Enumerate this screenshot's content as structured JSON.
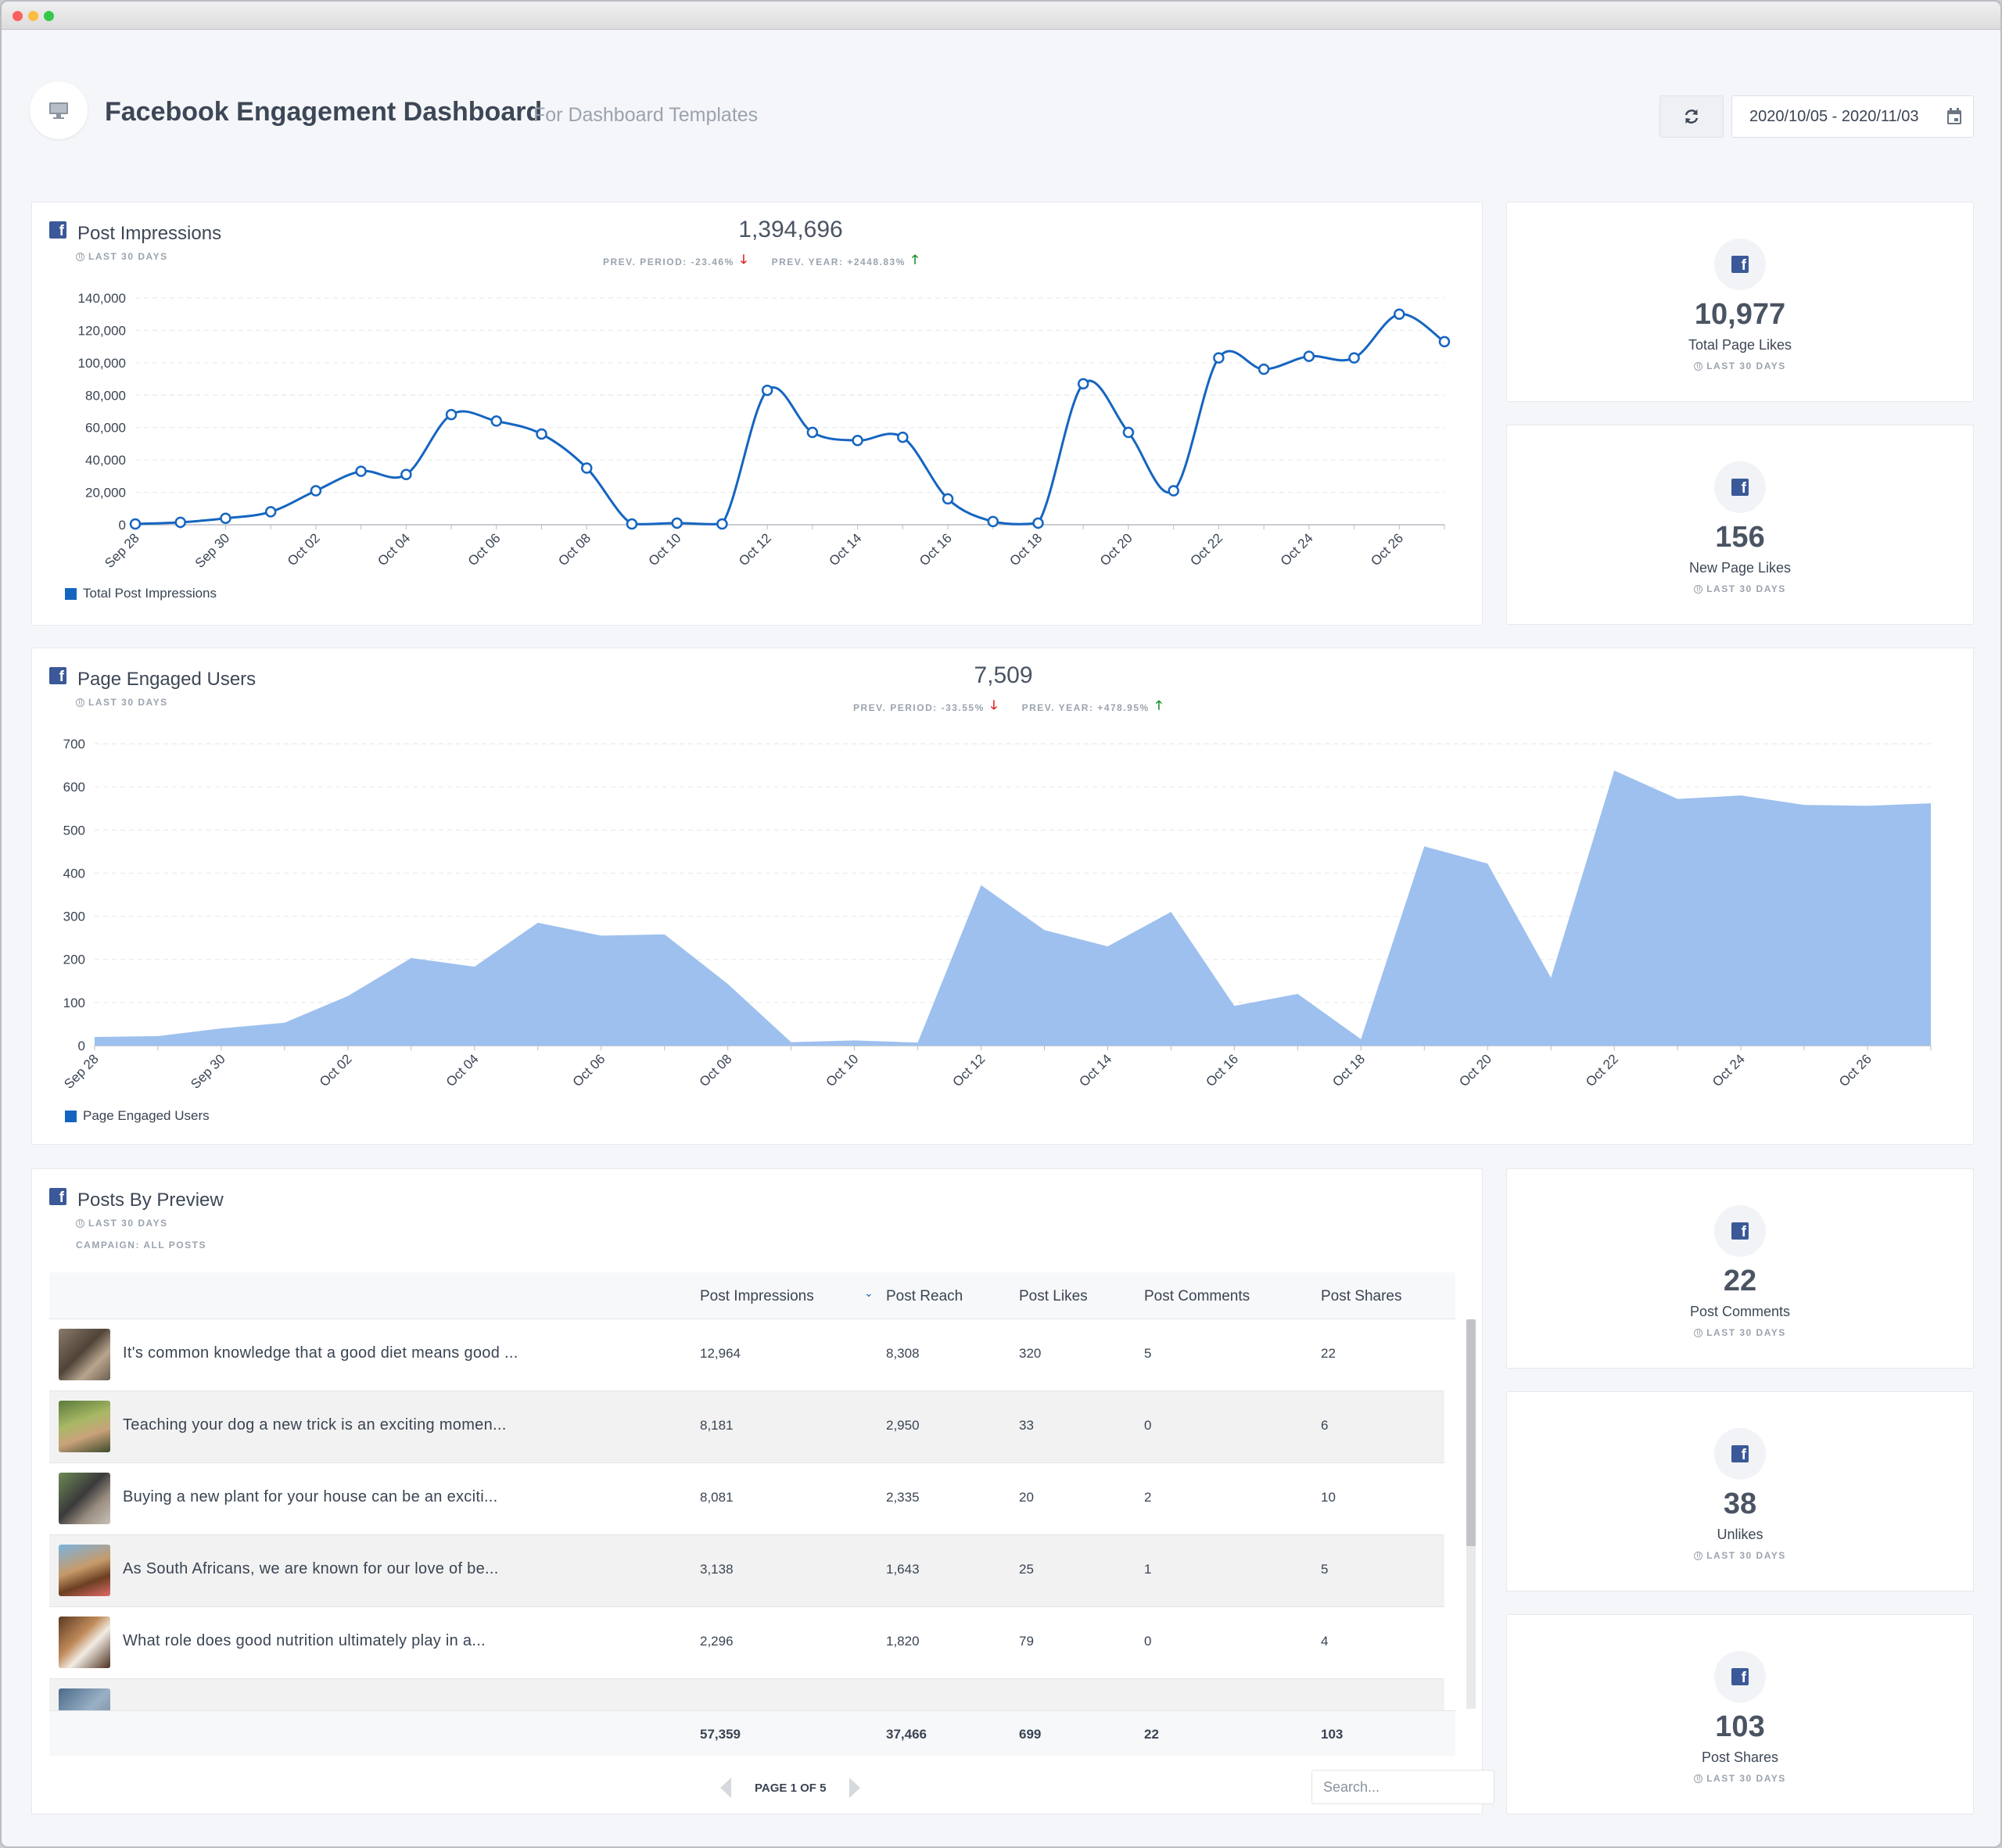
{
  "header": {
    "title": "Facebook Engagement Dashboard",
    "subtitle": "For Dashboard Templates",
    "date_range": "2020/10/05 - 2020/11/03"
  },
  "impressions_panel": {
    "title": "Post Impressions",
    "period": "LAST 30 DAYS",
    "total": "1,394,696",
    "prev_period": "PREV. PERIOD: -23.46%",
    "prev_year": "PREV. YEAR: +2448.83%",
    "legend": "Total Post Impressions"
  },
  "engaged_panel": {
    "title": "Page Engaged Users",
    "period": "LAST 30 DAYS",
    "total": "7,509",
    "prev_period": "PREV. PERIOD: -33.55%",
    "prev_year": "PREV. YEAR: +478.95%",
    "legend": "Page Engaged Users"
  },
  "kpis": [
    {
      "value": "10,977",
      "label": "Total Page Likes",
      "period": "LAST 30 DAYS"
    },
    {
      "value": "156",
      "label": "New Page Likes",
      "period": "LAST 30 DAYS"
    },
    {
      "value": "22",
      "label": "Post Comments",
      "period": "LAST 30 DAYS"
    },
    {
      "value": "38",
      "label": "Unlikes",
      "period": "LAST 30 DAYS"
    },
    {
      "value": "103",
      "label": "Post Shares",
      "period": "LAST 30 DAYS"
    }
  ],
  "posts_panel": {
    "title": "Posts By Preview",
    "period": "LAST 30 DAYS",
    "campaign": "CAMPAIGN: ALL POSTS",
    "columns": [
      "Post Impressions",
      "Post Reach",
      "Post Likes",
      "Post Comments",
      "Post Shares"
    ],
    "rows": [
      {
        "text": "It's common knowledge that a good diet means good ...",
        "impressions": "12,964",
        "reach": "8,308",
        "likes": "320",
        "comments": "5",
        "shares": "22"
      },
      {
        "text": "Teaching your dog a new trick is an exciting momen...",
        "impressions": "8,181",
        "reach": "2,950",
        "likes": "33",
        "comments": "0",
        "shares": "6"
      },
      {
        "text": "Buying a new plant for your house can be an exciti...",
        "impressions": "8,081",
        "reach": "2,335",
        "likes": "20",
        "comments": "2",
        "shares": "10"
      },
      {
        "text": "As South Africans, we are known for our love of be...",
        "impressions": "3,138",
        "reach": "1,643",
        "likes": "25",
        "comments": "1",
        "shares": "5"
      },
      {
        "text": "What role does good nutrition ultimately play in a...",
        "impressions": "2,296",
        "reach": "1,820",
        "likes": "79",
        "comments": "0",
        "shares": "4"
      },
      {
        "text": "",
        "impressions": "",
        "reach": "",
        "likes": "",
        "comments": "",
        "shares": ""
      }
    ],
    "totals": {
      "impressions": "57,359",
      "reach": "37,466",
      "likes": "699",
      "comments": "22",
      "shares": "103"
    },
    "pagination": "PAGE 1 OF 5",
    "search_placeholder": "Search..."
  },
  "colors": {
    "line": "#1565c0",
    "area": "#9dc0ee",
    "facebook": "#3b5998",
    "down": "#e02424",
    "up": "#1a8f2a"
  },
  "chart_data": [
    {
      "type": "line",
      "title": "Post Impressions",
      "x": [
        "Sep 28",
        "Sep 29",
        "Sep 30",
        "Oct 01",
        "Oct 02",
        "Oct 03",
        "Oct 04",
        "Oct 05",
        "Oct 06",
        "Oct 07",
        "Oct 08",
        "Oct 09",
        "Oct 10",
        "Oct 11",
        "Oct 12",
        "Oct 13",
        "Oct 14",
        "Oct 15",
        "Oct 16",
        "Oct 17",
        "Oct 18",
        "Oct 19",
        "Oct 20",
        "Oct 21",
        "Oct 22",
        "Oct 23",
        "Oct 24",
        "Oct 25",
        "Oct 26",
        "Oct 27"
      ],
      "x_tick_labels": [
        "Sep 28",
        "Sep 30",
        "Oct 02",
        "Oct 04",
        "Oct 06",
        "Oct 08",
        "Oct 10",
        "Oct 12",
        "Oct 14",
        "Oct 16",
        "Oct 18",
        "Oct 20",
        "Oct 22",
        "Oct 24",
        "Oct 26"
      ],
      "series": [
        {
          "name": "Total Post Impressions",
          "values": [
            500,
            1500,
            4000,
            8000,
            21000,
            33000,
            31000,
            68000,
            64000,
            56000,
            35000,
            500,
            1000,
            500,
            83000,
            57000,
            52000,
            54000,
            16000,
            2000,
            1000,
            87000,
            57000,
            21000,
            103000,
            96000,
            104000,
            103000,
            130000,
            113000
          ]
        }
      ],
      "ylim": [
        0,
        140000
      ],
      "y_ticks": [
        "0",
        "20,000",
        "40,000",
        "60,000",
        "80,000",
        "100,000",
        "120,000",
        "140,000"
      ],
      "grid": true,
      "legend_position": "bottom-left"
    },
    {
      "type": "area",
      "title": "Page Engaged Users",
      "x": [
        "Sep 28",
        "Sep 29",
        "Sep 30",
        "Oct 01",
        "Oct 02",
        "Oct 03",
        "Oct 04",
        "Oct 05",
        "Oct 06",
        "Oct 07",
        "Oct 08",
        "Oct 09",
        "Oct 10",
        "Oct 11",
        "Oct 12",
        "Oct 13",
        "Oct 14",
        "Oct 15",
        "Oct 16",
        "Oct 17",
        "Oct 18",
        "Oct 19",
        "Oct 20",
        "Oct 21",
        "Oct 22",
        "Oct 23",
        "Oct 24",
        "Oct 25",
        "Oct 26",
        "Oct 27"
      ],
      "x_tick_labels": [
        "Sep 28",
        "Sep 30",
        "Oct 02",
        "Oct 04",
        "Oct 06",
        "Oct 08",
        "Oct 10",
        "Oct 12",
        "Oct 14",
        "Oct 16",
        "Oct 18",
        "Oct 20",
        "Oct 22",
        "Oct 24",
        "Oct 26"
      ],
      "series": [
        {
          "name": "Page Engaged Users",
          "values": [
            20,
            22,
            40,
            53,
            115,
            203,
            183,
            285,
            255,
            258,
            143,
            8,
            12,
            7,
            372,
            268,
            230,
            310,
            92,
            120,
            15,
            462,
            422,
            157,
            638,
            572,
            580,
            558,
            556,
            562
          ]
        }
      ],
      "ylim": [
        0,
        700
      ],
      "y_ticks": [
        "0",
        "100",
        "200",
        "300",
        "400",
        "500",
        "600",
        "700"
      ],
      "grid": true,
      "legend_position": "bottom-left"
    }
  ]
}
